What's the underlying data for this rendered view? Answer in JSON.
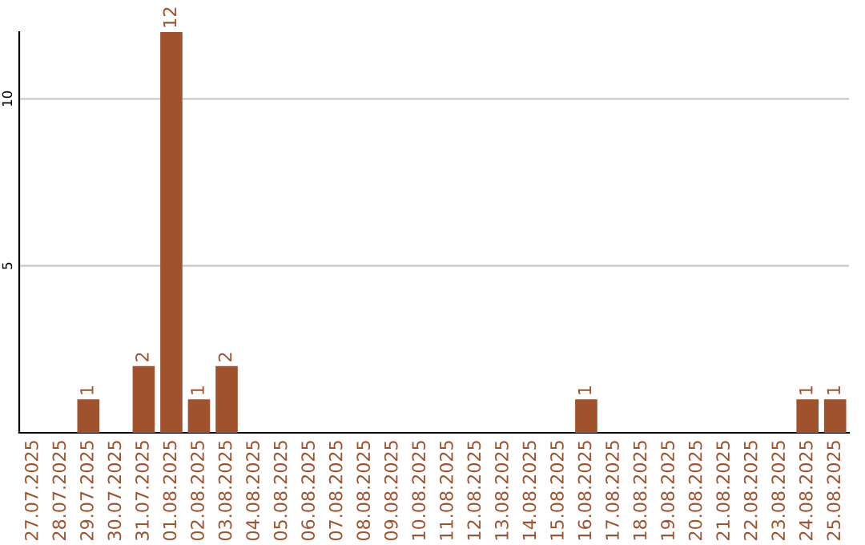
{
  "chart_data": {
    "type": "bar",
    "categories": [
      "27.07.2025",
      "28.07.2025",
      "29.07.2025",
      "30.07.2025",
      "31.07.2025",
      "01.08.2025",
      "02.08.2025",
      "03.08.2025",
      "04.08.2025",
      "05.08.2025",
      "06.08.2025",
      "07.08.2025",
      "08.08.2025",
      "09.08.2025",
      "10.08.2025",
      "11.08.2025",
      "12.08.2025",
      "13.08.2025",
      "14.08.2025",
      "15.08.2025",
      "16.08.2025",
      "17.08.2025",
      "18.08.2025",
      "19.08.2025",
      "20.08.2025",
      "21.08.2025",
      "22.08.2025",
      "23.08.2025",
      "24.08.2025",
      "25.08.2025"
    ],
    "values": [
      0,
      0,
      1,
      0,
      2,
      12,
      1,
      2,
      0,
      0,
      0,
      0,
      0,
      0,
      0,
      0,
      0,
      0,
      0,
      0,
      1,
      0,
      0,
      0,
      0,
      0,
      0,
      0,
      1,
      1
    ],
    "value_labels": [
      null,
      null,
      "1",
      null,
      "2",
      "12",
      "1",
      "2",
      null,
      null,
      null,
      null,
      null,
      null,
      null,
      null,
      null,
      null,
      null,
      null,
      "1",
      null,
      null,
      null,
      null,
      null,
      null,
      null,
      "1",
      "1"
    ],
    "color": "#a0522d",
    "ylim": [
      0,
      12
    ],
    "yticks": [
      5,
      10
    ],
    "grid": "y"
  }
}
